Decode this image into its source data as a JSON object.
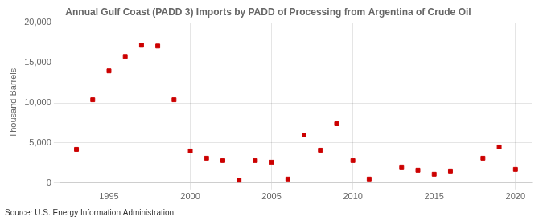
{
  "chart_data": {
    "type": "scatter",
    "title": "Annual Gulf Coast (PADD 3) Imports by PADD of Processing from Argentina of Crude Oil",
    "ylabel": "Thousand Barrels",
    "annotations": [
      "Source: U.S. Energy Information Administration"
    ],
    "x": [
      1993,
      1994,
      1995,
      1996,
      1997,
      1998,
      1999,
      2000,
      2001,
      2002,
      2003,
      2004,
      2005,
      2006,
      2007,
      2008,
      2009,
      2010,
      2011,
      2013,
      2014,
      2015,
      2016,
      2018,
      2019,
      2020
    ],
    "values": [
      4200,
      10400,
      14000,
      15800,
      17200,
      17100,
      10400,
      4000,
      3100,
      2800,
      350,
      2800,
      2600,
      500,
      6000,
      4100,
      7400,
      2800,
      500,
      2000,
      1600,
      1100,
      1500,
      3100,
      4500,
      1700
    ],
    "color": "#cc0000",
    "marker": "square",
    "xlim": [
      1992,
      2021
    ],
    "ylim": [
      0,
      20000
    ],
    "xticks": [
      1995,
      2000,
      2005,
      2010,
      2015,
      2020
    ],
    "yticks": [
      0,
      {
        "value": 5000,
        "label": "5,000"
      },
      {
        "value": 10000,
        "label": "10,000"
      },
      {
        "value": 15000,
        "label": "15,000"
      },
      {
        "value": 20000,
        "label": "20,000"
      }
    ],
    "grid": true
  }
}
